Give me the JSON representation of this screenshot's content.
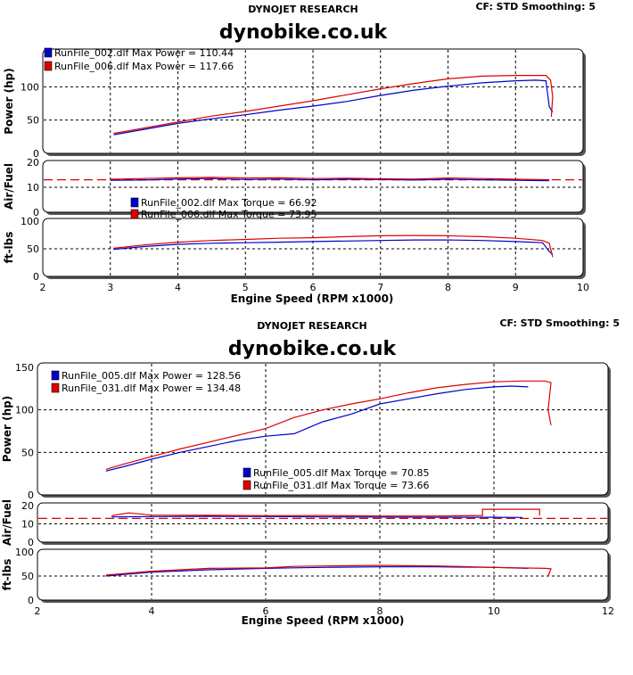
{
  "chart_data": [
    {
      "type": "line",
      "header": "DYNOJET RESEARCH",
      "settings": "CF: STD  Smoothing: 5",
      "title": "dynobike.co.uk",
      "xlabel": "Engine Speed (RPM x1000)",
      "xlim": [
        2,
        10
      ],
      "xticks": [
        "2",
        "3",
        "4",
        "5",
        "6",
        "7",
        "8",
        "9",
        "10"
      ],
      "grid": true,
      "colors": {
        "blue": "#0000cc",
        "red": "#dd0000"
      },
      "panels": [
        {
          "ylabel": "Power (hp)",
          "ylim": [
            0,
            150
          ],
          "yticks": [
            "0",
            "50",
            "100"
          ],
          "legend": [
            "RunFile_002.dlf Max Power = 110.44",
            "RunFile_006.dlf Max Power = 117.66"
          ],
          "series": [
            {
              "color": "blue",
              "points": [
                [
                  3.05,
                  28
                ],
                [
                  3.5,
                  36
                ],
                [
                  4,
                  45
                ],
                [
                  4.5,
                  52
                ],
                [
                  5,
                  58
                ],
                [
                  5.5,
                  65
                ],
                [
                  6,
                  71
                ],
                [
                  6.5,
                  78
                ],
                [
                  7,
                  87
                ],
                [
                  7.5,
                  95
                ],
                [
                  8,
                  101
                ],
                [
                  8.5,
                  106
                ],
                [
                  9,
                  109
                ],
                [
                  9.3,
                  110
                ],
                [
                  9.45,
                  109
                ],
                [
                  9.5,
                  70
                ],
                [
                  9.55,
                  62
                ]
              ]
            },
            {
              "color": "red",
              "points": [
                [
                  3.05,
                  30
                ],
                [
                  3.5,
                  38
                ],
                [
                  4,
                  47
                ],
                [
                  4.5,
                  56
                ],
                [
                  5,
                  63
                ],
                [
                  5.5,
                  71
                ],
                [
                  6,
                  79
                ],
                [
                  6.5,
                  88
                ],
                [
                  7,
                  97
                ],
                [
                  7.5,
                  105
                ],
                [
                  8,
                  112
                ],
                [
                  8.5,
                  116
                ],
                [
                  9,
                  117
                ],
                [
                  9.45,
                  117
                ],
                [
                  9.52,
                  110
                ],
                [
                  9.55,
                  85
                ],
                [
                  9.53,
                  55
                ]
              ]
            }
          ]
        },
        {
          "ylabel": "Air/Fuel",
          "ylim": [
            0,
            20
          ],
          "yticks": [
            "0",
            "10",
            "20"
          ],
          "reference_line": 13,
          "series": [
            {
              "color": "blue",
              "points": [
                [
                  3,
                  12.8
                ],
                [
                  3.5,
                  12.9
                ],
                [
                  4,
                  13.3
                ],
                [
                  4.5,
                  13.5
                ],
                [
                  5,
                  13.1
                ],
                [
                  5.5,
                  13.3
                ],
                [
                  6,
                  13
                ],
                [
                  6.5,
                  13.2
                ],
                [
                  7,
                  13.1
                ],
                [
                  7.5,
                  12.9
                ],
                [
                  8,
                  13.2
                ],
                [
                  8.5,
                  13
                ],
                [
                  9,
                  12.8
                ],
                [
                  9.5,
                  12.6
                ]
              ]
            },
            {
              "color": "red",
              "points": [
                [
                  3,
                  13.2
                ],
                [
                  3.5,
                  13.5
                ],
                [
                  4,
                  13.8
                ],
                [
                  4.5,
                  14
                ],
                [
                  5,
                  13.7
                ],
                [
                  5.5,
                  13.8
                ],
                [
                  6,
                  13.5
                ],
                [
                  6.5,
                  13.6
                ],
                [
                  7,
                  13.4
                ],
                [
                  7.5,
                  13.3
                ],
                [
                  8,
                  13.7
                ],
                [
                  8.5,
                  13.5
                ],
                [
                  9,
                  13.2
                ],
                [
                  9.5,
                  13
                ]
              ]
            }
          ]
        },
        {
          "ylabel": "ft-lbs",
          "ylim": [
            0,
            100
          ],
          "yticks": [
            "0",
            "50",
            "100"
          ],
          "legend": [
            "RunFile_002.dlf Max Torque = 66.92",
            "RunFile_006.dlf Max Torque = 73.95"
          ],
          "series": [
            {
              "color": "blue",
              "points": [
                [
                  3.05,
                  49
                ],
                [
                  3.5,
                  54
                ],
                [
                  4,
                  58
                ],
                [
                  4.5,
                  60
                ],
                [
                  5,
                  61
                ],
                [
                  5.5,
                  62
                ],
                [
                  6,
                  63
                ],
                [
                  6.5,
                  64
                ],
                [
                  7,
                  65
                ],
                [
                  7.5,
                  66
                ],
                [
                  8,
                  66
                ],
                [
                  8.5,
                  65
                ],
                [
                  9,
                  63
                ],
                [
                  9.4,
                  61
                ],
                [
                  9.5,
                  45
                ],
                [
                  9.55,
                  40
                ]
              ]
            },
            {
              "color": "red",
              "points": [
                [
                  3.05,
                  51
                ],
                [
                  3.5,
                  57
                ],
                [
                  4,
                  62
                ],
                [
                  4.5,
                  65
                ],
                [
                  5,
                  67
                ],
                [
                  5.5,
                  69
                ],
                [
                  6,
                  70
                ],
                [
                  6.5,
                  72
                ],
                [
                  7,
                  73.5
                ],
                [
                  7.5,
                  74
                ],
                [
                  8,
                  73.5
                ],
                [
                  8.5,
                  72
                ],
                [
                  9,
                  69
                ],
                [
                  9.4,
                  65
                ],
                [
                  9.5,
                  60
                ],
                [
                  9.55,
                  35
                ]
              ]
            }
          ]
        }
      ]
    },
    {
      "type": "line",
      "header": "DYNOJET RESEARCH",
      "settings": "CF: STD  Smoothing: 5",
      "title": "dynobike.co.uk",
      "xlabel": "Engine Speed (RPM x1000)",
      "xlim": [
        2,
        12
      ],
      "xticks": [
        "2",
        "4",
        "6",
        "8",
        "10",
        "12"
      ],
      "grid": true,
      "colors": {
        "blue": "#0000cc",
        "red": "#dd0000"
      },
      "panels": [
        {
          "ylabel": "Power (hp)",
          "ylim": [
            0,
            150
          ],
          "yticks": [
            "0",
            "50",
            "100",
            "150"
          ],
          "legend": [
            "RunFile_005.dlf Max Power = 128.56",
            "RunFile_031.dlf Max Power = 134.48"
          ],
          "legend2": [
            "RunFile_005.dlf Max Torque = 70.85",
            "RunFile_031.dlf Max Torque = 73.66"
          ],
          "series": [
            {
              "color": "blue",
              "points": [
                [
                  3.2,
                  28
                ],
                [
                  3.5,
                  33
                ],
                [
                  4,
                  42
                ],
                [
                  4.5,
                  50
                ],
                [
                  5,
                  57
                ],
                [
                  5.5,
                  64
                ],
                [
                  6,
                  69
                ],
                [
                  6.5,
                  72
                ],
                [
                  7,
                  86
                ],
                [
                  7.5,
                  95
                ],
                [
                  8,
                  107
                ],
                [
                  8.5,
                  113
                ],
                [
                  9,
                  119
                ],
                [
                  9.5,
                  124
                ],
                [
                  10,
                  127
                ],
                [
                  10.3,
                  128
                ],
                [
                  10.6,
                  127
                ]
              ]
            },
            {
              "color": "red",
              "points": [
                [
                  3.2,
                  30
                ],
                [
                  3.5,
                  36
                ],
                [
                  4,
                  45
                ],
                [
                  4.5,
                  54
                ],
                [
                  5,
                  62
                ],
                [
                  5.5,
                  70
                ],
                [
                  6,
                  78
                ],
                [
                  6.5,
                  91
                ],
                [
                  7,
                  100
                ],
                [
                  7.5,
                  107
                ],
                [
                  8,
                  113
                ],
                [
                  8.5,
                  120
                ],
                [
                  9,
                  126
                ],
                [
                  9.5,
                  130
                ],
                [
                  10,
                  133
                ],
                [
                  10.5,
                  134
                ],
                [
                  10.9,
                  134
                ],
                [
                  11,
                  132
                ],
                [
                  10.95,
                  100
                ],
                [
                  11,
                  82
                ]
              ]
            }
          ]
        },
        {
          "ylabel": "Air/Fuel",
          "ylim": [
            0,
            20
          ],
          "yticks": [
            "0",
            "10",
            "20"
          ],
          "reference_line": 13,
          "series": [
            {
              "color": "blue",
              "points": [
                [
                  3.3,
                  13.8
                ],
                [
                  4,
                  14
                ],
                [
                  5,
                  14.1
                ],
                [
                  6,
                  14
                ],
                [
                  7,
                  13.8
                ],
                [
                  8,
                  13.7
                ],
                [
                  9,
                  13.6
                ],
                [
                  10,
                  13.6
                ],
                [
                  10.5,
                  13.5
                ]
              ]
            },
            {
              "color": "red",
              "points": [
                [
                  3.3,
                  14.5
                ],
                [
                  3.6,
                  16
                ],
                [
                  4,
                  14.8
                ],
                [
                  5,
                  14.7
                ],
                [
                  6,
                  14.5
                ],
                [
                  7,
                  14.6
                ],
                [
                  8,
                  14.3
                ],
                [
                  9,
                  14.3
                ],
                [
                  9.8,
                  14.6
                ],
                [
                  9.8,
                  18
                ],
                [
                  10.8,
                  18
                ],
                [
                  10.8,
                  14.6
                ]
              ]
            }
          ]
        },
        {
          "ylabel": "ft-lbs",
          "ylim": [
            0,
            100
          ],
          "yticks": [
            "0",
            "50",
            "100"
          ],
          "series": [
            {
              "color": "blue",
              "points": [
                [
                  3.2,
                  50
                ],
                [
                  4,
                  58
                ],
                [
                  5,
                  63
                ],
                [
                  6,
                  66
                ],
                [
                  6.5,
                  67
                ],
                [
                  7,
                  68
                ],
                [
                  8,
                  69
                ],
                [
                  9,
                  69
                ],
                [
                  10,
                  68
                ],
                [
                  10.6,
                  66
                ]
              ]
            },
            {
              "color": "red",
              "points": [
                [
                  3.2,
                  52
                ],
                [
                  4,
                  60
                ],
                [
                  5,
                  66
                ],
                [
                  6,
                  67
                ],
                [
                  6.5,
                  70
                ],
                [
                  7,
                  71
                ],
                [
                  8,
                  72
                ],
                [
                  9,
                  71
                ],
                [
                  10,
                  68
                ],
                [
                  10.9,
                  66
                ],
                [
                  11,
                  65
                ],
                [
                  10.95,
                  50
                ]
              ]
            }
          ]
        }
      ]
    }
  ]
}
